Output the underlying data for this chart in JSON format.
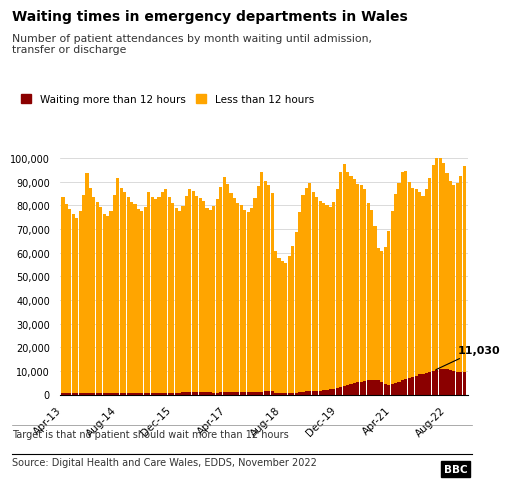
{
  "title": "Waiting times in emergency departments in Wales",
  "subtitle": "Number of patient attendances by month waiting until admission,\ntransfer or discharge",
  "legend_more": "Waiting more than 12 hours",
  "legend_less": "Less than 12 hours",
  "footer1": "Target is that no patient should wait more than 12 hours",
  "footer2": "Source: Digital Health and Care Wales, EDDS, November 2022",
  "annotation_value": "11,030",
  "color_more": "#8B0000",
  "color_less": "#FFA500",
  "ylim": [
    0,
    100000
  ],
  "yticks": [
    0,
    10000,
    20000,
    30000,
    40000,
    50000,
    60000,
    70000,
    80000,
    90000,
    100000
  ],
  "ytick_labels": [
    "0",
    "10,000",
    "20,000",
    "30,000",
    "40,000",
    "50,000",
    "60,000",
    "70,000",
    "80,000",
    "90,000",
    "100,000"
  ],
  "xtick_labels": [
    "Apr-13",
    "Aug-14",
    "Dec-15",
    "Apr-17",
    "Aug-18",
    "Dec-19",
    "Apr-21",
    "Aug-22"
  ],
  "xtick_positions": [
    0,
    16,
    32,
    48,
    64,
    80,
    96,
    112
  ],
  "n_bars": 118,
  "less_than_12": [
    83000,
    80000,
    78000,
    76000,
    74000,
    77000,
    84000,
    93000,
    87000,
    83000,
    81000,
    79000,
    76000,
    75000,
    77000,
    84000,
    91000,
    87000,
    85000,
    83000,
    81000,
    80000,
    78000,
    77000,
    79000,
    85000,
    83000,
    82000,
    83000,
    85000,
    86000,
    83000,
    80000,
    78000,
    77000,
    79000,
    83000,
    86000,
    85000,
    83000,
    82000,
    81000,
    78000,
    77000,
    79000,
    82000,
    87000,
    91000,
    88000,
    84000,
    82000,
    80000,
    79000,
    77000,
    76000,
    78000,
    82000,
    87000,
    93000,
    89000,
    87000,
    84000,
    60000,
    57000,
    56000,
    55000,
    58000,
    62000,
    68000,
    76000,
    83000,
    86000,
    88000,
    84000,
    82000,
    80000,
    79000,
    78000,
    77000,
    79000,
    84000,
    91000,
    94000,
    90000,
    88000,
    86000,
    84000,
    83000,
    81000,
    75000,
    72000,
    65000,
    56000,
    55000,
    58000,
    65000,
    73000,
    80000,
    84000,
    88000,
    88000,
    83000,
    80000,
    79000,
    77000,
    75000,
    78000,
    82000,
    87000,
    91000,
    90000,
    87000,
    83000,
    80000,
    79000,
    80000,
    83000,
    87000
  ],
  "more_than_12": [
    500,
    500,
    500,
    500,
    500,
    500,
    500,
    500,
    500,
    500,
    500,
    500,
    500,
    500,
    500,
    500,
    500,
    500,
    500,
    500,
    500,
    500,
    500,
    500,
    500,
    600,
    600,
    600,
    600,
    700,
    700,
    700,
    800,
    800,
    800,
    900,
    900,
    1000,
    1100,
    1100,
    1000,
    1000,
    900,
    900,
    800,
    800,
    900,
    1000,
    1100,
    1200,
    1200,
    1100,
    1100,
    1000,
    1000,
    1000,
    1000,
    1100,
    1200,
    1300,
    1400,
    1400,
    800,
    600,
    500,
    500,
    600,
    700,
    800,
    1000,
    1200,
    1300,
    1400,
    1500,
    1600,
    1700,
    1800,
    2000,
    2200,
    2500,
    2800,
    3200,
    3600,
    4000,
    4500,
    5000,
    5200,
    5500,
    5800,
    6000,
    6000,
    6200,
    6000,
    5500,
    4500,
    4000,
    4500,
    5000,
    5500,
    6000,
    6500,
    7000,
    7500,
    8000,
    8500,
    8800,
    9000,
    9500,
    10000,
    10500,
    10800,
    10900,
    10800,
    10300,
    9800,
    9500,
    9500,
    9600
  ]
}
